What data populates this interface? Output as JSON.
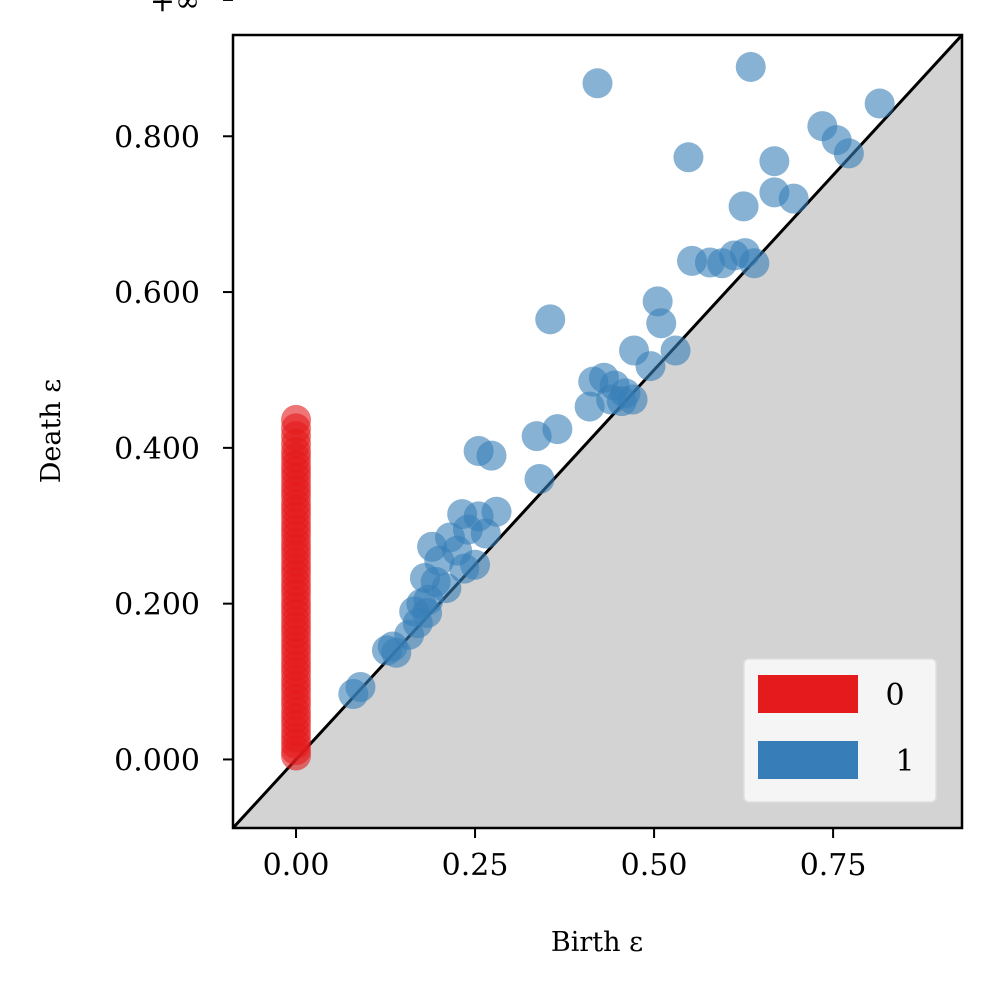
{
  "chart_data": {
    "type": "scatter",
    "title": "",
    "xlabel": "Birth ε",
    "ylabel": "Death ε",
    "xlim": [
      -0.088,
      0.93
    ],
    "ylim": [
      -0.088,
      0.93
    ],
    "x_ticks": [
      {
        "value": 0.0,
        "label": "0.00"
      },
      {
        "value": 0.25,
        "label": "0.25"
      },
      {
        "value": 0.5,
        "label": "0.50"
      },
      {
        "value": 0.75,
        "label": "0.75"
      }
    ],
    "y_ticks": [
      {
        "value": 0.0,
        "label": "0.000"
      },
      {
        "value": 0.2,
        "label": "0.200"
      },
      {
        "value": 0.4,
        "label": "0.400"
      },
      {
        "value": 0.6,
        "label": "0.600"
      },
      {
        "value": 0.8,
        "label": "0.800"
      }
    ],
    "infinity": {
      "label": "+∞",
      "value": 0.975
    },
    "diagonal": true,
    "shade_below_diagonal": true,
    "grid": false,
    "legend": {
      "placement": "bottom-right"
    },
    "colors": {
      "series0": "#e41a1c",
      "series1": "#377eb8",
      "shade": "#d3d3d3",
      "infinity_line": "#666666"
    },
    "series": [
      {
        "name": "0",
        "color": "#e41a1c",
        "infinite_points": [
          {
            "x": 0.0,
            "y": 0.975
          }
        ],
        "points": [
          {
            "x": 0,
            "y": 0.005
          },
          {
            "x": 0,
            "y": 0.012
          },
          {
            "x": 0,
            "y": 0.02
          },
          {
            "x": 0,
            "y": 0.028
          },
          {
            "x": 0,
            "y": 0.036
          },
          {
            "x": 0,
            "y": 0.045
          },
          {
            "x": 0,
            "y": 0.053
          },
          {
            "x": 0,
            "y": 0.061
          },
          {
            "x": 0,
            "y": 0.07
          },
          {
            "x": 0,
            "y": 0.078
          },
          {
            "x": 0,
            "y": 0.087
          },
          {
            "x": 0,
            "y": 0.095
          },
          {
            "x": 0,
            "y": 0.103
          },
          {
            "x": 0,
            "y": 0.112
          },
          {
            "x": 0,
            "y": 0.12
          },
          {
            "x": 0,
            "y": 0.128
          },
          {
            "x": 0,
            "y": 0.137
          },
          {
            "x": 0,
            "y": 0.145
          },
          {
            "x": 0,
            "y": 0.153
          },
          {
            "x": 0,
            "y": 0.162
          },
          {
            "x": 0,
            "y": 0.17
          },
          {
            "x": 0,
            "y": 0.178
          },
          {
            "x": 0,
            "y": 0.187
          },
          {
            "x": 0,
            "y": 0.195
          },
          {
            "x": 0,
            "y": 0.203
          },
          {
            "x": 0,
            "y": 0.212
          },
          {
            "x": 0,
            "y": 0.22
          },
          {
            "x": 0,
            "y": 0.228
          },
          {
            "x": 0,
            "y": 0.237
          },
          {
            "x": 0,
            "y": 0.245
          },
          {
            "x": 0,
            "y": 0.253
          },
          {
            "x": 0,
            "y": 0.262
          },
          {
            "x": 0,
            "y": 0.27
          },
          {
            "x": 0,
            "y": 0.278
          },
          {
            "x": 0,
            "y": 0.287
          },
          {
            "x": 0,
            "y": 0.295
          },
          {
            "x": 0,
            "y": 0.303
          },
          {
            "x": 0,
            "y": 0.312
          },
          {
            "x": 0,
            "y": 0.32
          },
          {
            "x": 0,
            "y": 0.328
          },
          {
            "x": 0,
            "y": 0.337
          },
          {
            "x": 0,
            "y": 0.345
          },
          {
            "x": 0,
            "y": 0.353
          },
          {
            "x": 0,
            "y": 0.362
          },
          {
            "x": 0,
            "y": 0.37
          },
          {
            "x": 0,
            "y": 0.378
          },
          {
            "x": 0,
            "y": 0.387
          },
          {
            "x": 0,
            "y": 0.395
          },
          {
            "x": 0,
            "y": 0.405
          },
          {
            "x": 0,
            "y": 0.415
          },
          {
            "x": 0,
            "y": 0.425
          },
          {
            "x": 0,
            "y": 0.436
          }
        ]
      },
      {
        "name": "1",
        "color": "#377eb8",
        "points": [
          {
            "x": 0.421,
            "y": 0.868
          },
          {
            "x": 0.635,
            "y": 0.889
          },
          {
            "x": 0.548,
            "y": 0.773
          },
          {
            "x": 0.735,
            "y": 0.813
          },
          {
            "x": 0.755,
            "y": 0.795
          },
          {
            "x": 0.772,
            "y": 0.778
          },
          {
            "x": 0.815,
            "y": 0.842
          },
          {
            "x": 0.668,
            "y": 0.768
          },
          {
            "x": 0.668,
            "y": 0.728
          },
          {
            "x": 0.625,
            "y": 0.71
          },
          {
            "x": 0.695,
            "y": 0.72
          },
          {
            "x": 0.553,
            "y": 0.64
          },
          {
            "x": 0.578,
            "y": 0.638
          },
          {
            "x": 0.595,
            "y": 0.637
          },
          {
            "x": 0.612,
            "y": 0.647
          },
          {
            "x": 0.627,
            "y": 0.65
          },
          {
            "x": 0.64,
            "y": 0.637
          },
          {
            "x": 0.505,
            "y": 0.588
          },
          {
            "x": 0.51,
            "y": 0.56
          },
          {
            "x": 0.355,
            "y": 0.565
          },
          {
            "x": 0.472,
            "y": 0.525
          },
          {
            "x": 0.53,
            "y": 0.525
          },
          {
            "x": 0.495,
            "y": 0.505
          },
          {
            "x": 0.415,
            "y": 0.485
          },
          {
            "x": 0.43,
            "y": 0.49
          },
          {
            "x": 0.445,
            "y": 0.48
          },
          {
            "x": 0.46,
            "y": 0.47
          },
          {
            "x": 0.44,
            "y": 0.462
          },
          {
            "x": 0.455,
            "y": 0.46
          },
          {
            "x": 0.47,
            "y": 0.462
          },
          {
            "x": 0.41,
            "y": 0.453
          },
          {
            "x": 0.365,
            "y": 0.424
          },
          {
            "x": 0.336,
            "y": 0.415
          },
          {
            "x": 0.255,
            "y": 0.396
          },
          {
            "x": 0.273,
            "y": 0.39
          },
          {
            "x": 0.34,
            "y": 0.36
          },
          {
            "x": 0.232,
            "y": 0.315
          },
          {
            "x": 0.255,
            "y": 0.312
          },
          {
            "x": 0.28,
            "y": 0.318
          },
          {
            "x": 0.24,
            "y": 0.295
          },
          {
            "x": 0.265,
            "y": 0.29
          },
          {
            "x": 0.215,
            "y": 0.285
          },
          {
            "x": 0.19,
            "y": 0.273
          },
          {
            "x": 0.225,
            "y": 0.268
          },
          {
            "x": 0.2,
            "y": 0.255
          },
          {
            "x": 0.235,
            "y": 0.245
          },
          {
            "x": 0.25,
            "y": 0.25
          },
          {
            "x": 0.18,
            "y": 0.233
          },
          {
            "x": 0.195,
            "y": 0.228
          },
          {
            "x": 0.21,
            "y": 0.22
          },
          {
            "x": 0.185,
            "y": 0.205
          },
          {
            "x": 0.175,
            "y": 0.2
          },
          {
            "x": 0.165,
            "y": 0.19
          },
          {
            "x": 0.183,
            "y": 0.188
          },
          {
            "x": 0.17,
            "y": 0.175
          },
          {
            "x": 0.158,
            "y": 0.16
          },
          {
            "x": 0.135,
            "y": 0.145
          },
          {
            "x": 0.127,
            "y": 0.14
          },
          {
            "x": 0.14,
            "y": 0.137
          },
          {
            "x": 0.09,
            "y": 0.093
          },
          {
            "x": 0.08,
            "y": 0.084
          }
        ]
      }
    ]
  }
}
